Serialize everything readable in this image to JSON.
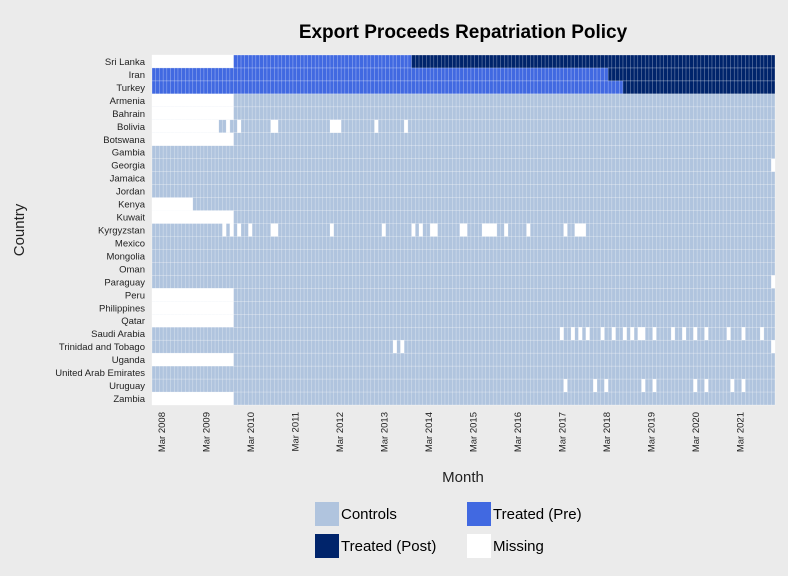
{
  "chart_data": {
    "type": "heatmap",
    "title": "Export Proceeds Repatriation Policy",
    "xlabel": "Month",
    "ylabel": "Country",
    "x_tick_labels": [
      "Mar 2008",
      "Mar 2009",
      "Mar 2010",
      "Mar 2011",
      "Mar 2012",
      "Mar 2013",
      "Mar 2014",
      "Mar 2015",
      "Mar 2016",
      "Mar 2017",
      "Mar 2018",
      "Mar 2019",
      "Mar 2020",
      "Mar 2021"
    ],
    "x_start": "2008-01",
    "x_end": "2021-12",
    "countries": [
      "Sri Lanka",
      "Iran",
      "Turkey",
      "Armenia",
      "Bahrain",
      "Bolivia",
      "Botswana",
      "Gambia",
      "Georgia",
      "Jamaica",
      "Jordan",
      "Kenya",
      "Kuwait",
      "Kyrgyzstan",
      "Mexico",
      "Mongolia",
      "Oman",
      "Paraguay",
      "Peru",
      "Philippines",
      "Qatar",
      "Saudi Arabia",
      "Trinidad and Tobago",
      "Uganda",
      "United Arab Emirates",
      "Uruguay",
      "Zambia"
    ],
    "status_colors": {
      "Controls": "#b0c4de",
      "Treated (Pre)": "#4169e1",
      "Treated (Post)": "#00246b",
      "Missing": "#ffffff"
    },
    "legend": [
      "Controls",
      "Treated (Pre)",
      "Treated (Post)",
      "Missing"
    ],
    "default_status": "Controls",
    "grid": true,
    "rows": [
      {
        "country": "Sri Lanka",
        "segments": [
          {
            "from": "2008-01",
            "to": "2009-10",
            "status": "Missing"
          },
          {
            "from": "2009-11",
            "to": "2013-10",
            "status": "Treated (Pre)"
          },
          {
            "from": "2013-11",
            "to": "2021-12",
            "status": "Treated (Post)"
          }
        ]
      },
      {
        "country": "Iran",
        "segments": [
          {
            "from": "2008-01",
            "to": "2018-03",
            "status": "Treated (Pre)"
          },
          {
            "from": "2018-04",
            "to": "2021-12",
            "status": "Treated (Post)"
          }
        ]
      },
      {
        "country": "Turkey",
        "segments": [
          {
            "from": "2008-01",
            "to": "2018-07",
            "status": "Treated (Pre)"
          },
          {
            "from": "2018-08",
            "to": "2021-12",
            "status": "Treated (Post)"
          }
        ]
      },
      {
        "country": "Armenia",
        "segments": [
          {
            "from": "2008-01",
            "to": "2009-10",
            "status": "Missing"
          }
        ]
      },
      {
        "country": "Bahrain",
        "segments": [
          {
            "from": "2008-01",
            "to": "2009-10",
            "status": "Missing"
          }
        ]
      },
      {
        "country": "Bolivia",
        "segments": [
          {
            "from": "2008-01",
            "to": "2009-06",
            "status": "Missing"
          },
          {
            "from": "2009-09",
            "to": "2009-09",
            "status": "Missing"
          },
          {
            "from": "2009-12",
            "to": "2009-12",
            "status": "Missing"
          },
          {
            "from": "2010-09",
            "to": "2010-10",
            "status": "Missing"
          },
          {
            "from": "2012-01",
            "to": "2012-03",
            "status": "Missing"
          },
          {
            "from": "2013-01",
            "to": "2013-01",
            "status": "Missing"
          },
          {
            "from": "2013-09",
            "to": "2013-09",
            "status": "Missing"
          }
        ]
      },
      {
        "country": "Botswana",
        "segments": [
          {
            "from": "2008-01",
            "to": "2009-10",
            "status": "Missing"
          }
        ]
      },
      {
        "country": "Gambia",
        "segments": []
      },
      {
        "country": "Georgia",
        "segments": [
          {
            "from": "2021-12",
            "to": "2021-12",
            "status": "Missing"
          }
        ]
      },
      {
        "country": "Jamaica",
        "segments": []
      },
      {
        "country": "Jordan",
        "segments": []
      },
      {
        "country": "Kenya",
        "segments": [
          {
            "from": "2008-01",
            "to": "2008-11",
            "status": "Missing"
          }
        ]
      },
      {
        "country": "Kuwait",
        "segments": [
          {
            "from": "2008-01",
            "to": "2009-10",
            "status": "Missing"
          }
        ]
      },
      {
        "country": "Kyrgyzstan",
        "segments": [
          {
            "from": "2009-08",
            "to": "2009-08",
            "status": "Missing"
          },
          {
            "from": "2009-10",
            "to": "2009-10",
            "status": "Missing"
          },
          {
            "from": "2009-12",
            "to": "2009-12",
            "status": "Missing"
          },
          {
            "from": "2010-03",
            "to": "2010-03",
            "status": "Missing"
          },
          {
            "from": "2010-09",
            "to": "2010-10",
            "status": "Missing"
          },
          {
            "from": "2012-01",
            "to": "2012-01",
            "status": "Missing"
          },
          {
            "from": "2013-03",
            "to": "2013-03",
            "status": "Missing"
          },
          {
            "from": "2013-11",
            "to": "2013-11",
            "status": "Missing"
          },
          {
            "from": "2014-01",
            "to": "2014-01",
            "status": "Missing"
          },
          {
            "from": "2014-04",
            "to": "2014-05",
            "status": "Missing"
          },
          {
            "from": "2014-12",
            "to": "2015-01",
            "status": "Missing"
          },
          {
            "from": "2015-06",
            "to": "2015-09",
            "status": "Missing"
          },
          {
            "from": "2015-12",
            "to": "2015-12",
            "status": "Missing"
          },
          {
            "from": "2016-06",
            "to": "2016-06",
            "status": "Missing"
          },
          {
            "from": "2017-04",
            "to": "2017-04",
            "status": "Missing"
          },
          {
            "from": "2017-07",
            "to": "2017-09",
            "status": "Missing"
          }
        ]
      },
      {
        "country": "Mexico",
        "segments": []
      },
      {
        "country": "Mongolia",
        "segments": []
      },
      {
        "country": "Oman",
        "segments": []
      },
      {
        "country": "Paraguay",
        "segments": [
          {
            "from": "2021-12",
            "to": "2021-12",
            "status": "Missing"
          }
        ]
      },
      {
        "country": "Peru",
        "segments": [
          {
            "from": "2008-01",
            "to": "2009-10",
            "status": "Missing"
          }
        ]
      },
      {
        "country": "Philippines",
        "segments": [
          {
            "from": "2008-01",
            "to": "2009-10",
            "status": "Missing"
          }
        ]
      },
      {
        "country": "Qatar",
        "segments": [
          {
            "from": "2008-01",
            "to": "2009-10",
            "status": "Missing"
          }
        ]
      },
      {
        "country": "Saudi Arabia",
        "segments": [
          {
            "from": "2017-03",
            "to": "2017-03",
            "status": "Missing"
          },
          {
            "from": "2017-06",
            "to": "2017-06",
            "status": "Missing"
          },
          {
            "from": "2017-08",
            "to": "2017-08",
            "status": "Missing"
          },
          {
            "from": "2017-10",
            "to": "2017-10",
            "status": "Missing"
          },
          {
            "from": "2018-02",
            "to": "2018-02",
            "status": "Missing"
          },
          {
            "from": "2018-05",
            "to": "2018-05",
            "status": "Missing"
          },
          {
            "from": "2018-08",
            "to": "2018-08",
            "status": "Missing"
          },
          {
            "from": "2018-10",
            "to": "2018-10",
            "status": "Missing"
          },
          {
            "from": "2018-12",
            "to": "2019-01",
            "status": "Missing"
          },
          {
            "from": "2019-04",
            "to": "2019-04",
            "status": "Missing"
          },
          {
            "from": "2019-09",
            "to": "2019-09",
            "status": "Missing"
          },
          {
            "from": "2019-12",
            "to": "2019-12",
            "status": "Missing"
          },
          {
            "from": "2020-03",
            "to": "2020-03",
            "status": "Missing"
          },
          {
            "from": "2020-06",
            "to": "2020-06",
            "status": "Missing"
          },
          {
            "from": "2020-12",
            "to": "2020-12",
            "status": "Missing"
          },
          {
            "from": "2021-04",
            "to": "2021-04",
            "status": "Missing"
          },
          {
            "from": "2021-09",
            "to": "2021-09",
            "status": "Missing"
          }
        ]
      },
      {
        "country": "Trinidad and Tobago",
        "segments": [
          {
            "from": "2013-06",
            "to": "2013-06",
            "status": "Missing"
          },
          {
            "from": "2013-08",
            "to": "2013-08",
            "status": "Missing"
          },
          {
            "from": "2021-12",
            "to": "2021-12",
            "status": "Missing"
          }
        ]
      },
      {
        "country": "Uganda",
        "segments": [
          {
            "from": "2008-01",
            "to": "2009-10",
            "status": "Missing"
          }
        ]
      },
      {
        "country": "United Arab Emirates",
        "segments": []
      },
      {
        "country": "Uruguay",
        "segments": [
          {
            "from": "2017-04",
            "to": "2017-04",
            "status": "Missing"
          },
          {
            "from": "2017-12",
            "to": "2017-12",
            "status": "Missing"
          },
          {
            "from": "2018-03",
            "to": "2018-03",
            "status": "Missing"
          },
          {
            "from": "2019-01",
            "to": "2019-01",
            "status": "Missing"
          },
          {
            "from": "2019-04",
            "to": "2019-04",
            "status": "Missing"
          },
          {
            "from": "2020-03",
            "to": "2020-03",
            "status": "Missing"
          },
          {
            "from": "2020-06",
            "to": "2020-06",
            "status": "Missing"
          },
          {
            "from": "2021-01",
            "to": "2021-01",
            "status": "Missing"
          },
          {
            "from": "2021-04",
            "to": "2021-04",
            "status": "Missing"
          }
        ]
      },
      {
        "country": "Zambia",
        "segments": [
          {
            "from": "2008-01",
            "to": "2009-10",
            "status": "Missing"
          }
        ]
      }
    ]
  }
}
